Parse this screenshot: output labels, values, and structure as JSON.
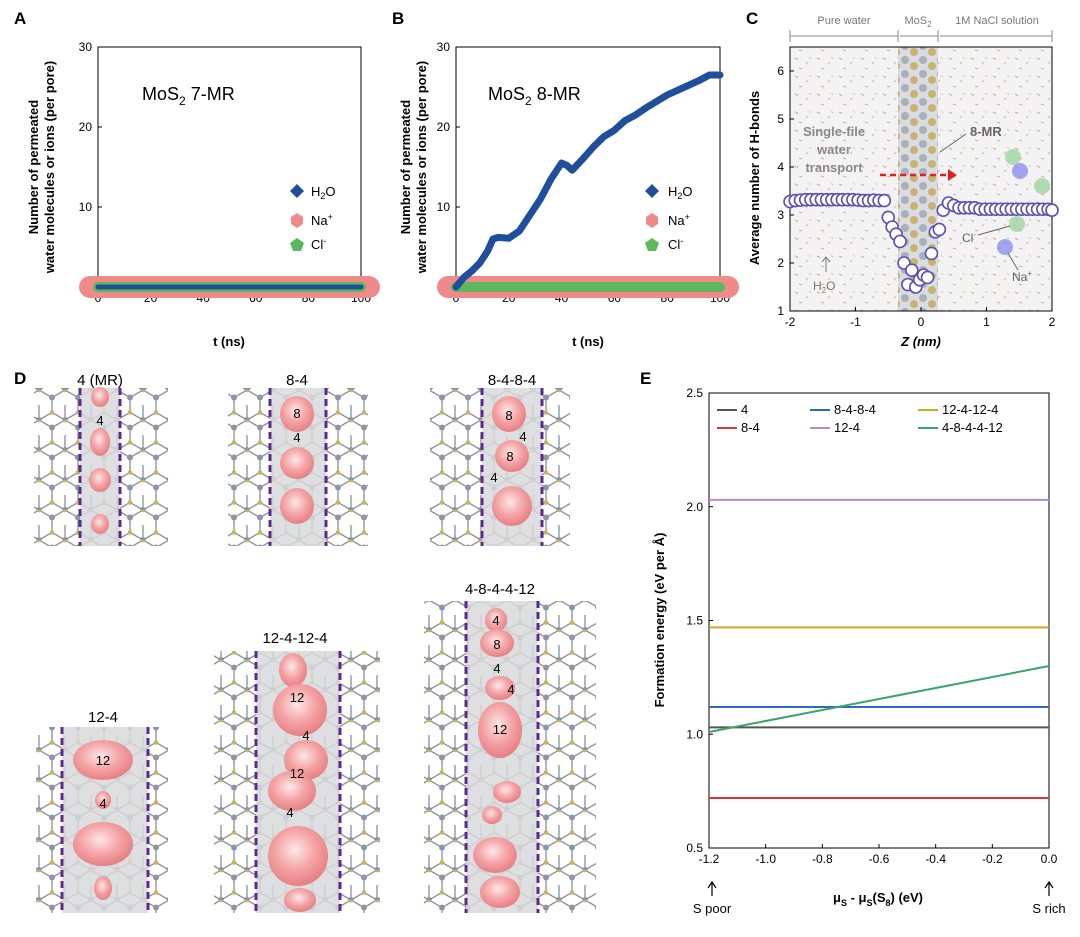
{
  "panels": {
    "A": {
      "letter": "A",
      "label": "MoS",
      "label_sub": "2",
      "label_suffix": " 7-MR",
      "xlabel": "t (ns)",
      "ylabel_1": "Number of permeated",
      "ylabel_2": "water molecules or ions (per pore)",
      "legend": [
        "H",
        "Na",
        "Cl"
      ],
      "legend_full": [
        "H2O",
        "Na+",
        "Cl-"
      ]
    },
    "B": {
      "letter": "B",
      "label": "MoS",
      "label_sub": "2",
      "label_suffix": " 8-MR",
      "xlabel": "t (ns)",
      "ylabel_1": "Number of permeated",
      "ylabel_2": "water molecules or ions (per pore)",
      "legend_full": [
        "H2O",
        "Na+",
        "Cl-"
      ]
    },
    "C": {
      "letter": "C",
      "top_labels": [
        "Pure water",
        "MoS",
        "1M NaCl solution"
      ],
      "top_sub": "2",
      "annot_single": [
        "Single-file",
        "water",
        "transport"
      ],
      "annot_8mr": "8-MR",
      "annot_h2o": "H",
      "annot_cl": "Cl",
      "annot_na": "Na",
      "xlabel": "Z (nm)",
      "ylabel": "Average number of H-bonds"
    },
    "D": {
      "letter": "D",
      "structures": [
        "4 (MR)",
        "8-4",
        "8-4-8-4",
        "12-4",
        "12-4-12-4",
        "4-8-4-4-12"
      ],
      "ring_labels": {
        "s1": [
          "4"
        ],
        "s2": [
          "8",
          "4"
        ],
        "s3": [
          "8",
          "4",
          "8",
          "4"
        ],
        "s4": [
          "12",
          "4"
        ],
        "s5": [
          "12",
          "4",
          "12",
          "4"
        ],
        "s6": [
          "4",
          "8",
          "4",
          "4",
          "12"
        ]
      }
    },
    "E": {
      "letter": "E",
      "xlabel": "μ",
      "ylabel": "Formation energy (eV per Å)",
      "s_poor": "S poor",
      "s_rich": "S rich"
    }
  },
  "chart_data": [
    {
      "panel": "A",
      "type": "line",
      "title": "MoS2 7-MR",
      "xlabel": "t (ns)",
      "ylabel": "Number of permeated water molecules or ions (per pore)",
      "xlim": [
        0,
        100
      ],
      "ylim": [
        0,
        30
      ],
      "xticks": [
        0,
        20,
        40,
        60,
        80,
        100
      ],
      "yticks": [
        0,
        10,
        20,
        30
      ],
      "series": [
        {
          "name": "H2O",
          "color": "#1f4e9c",
          "x": [
            0,
            100
          ],
          "y": [
            0,
            0
          ]
        },
        {
          "name": "Na+",
          "color": "#f08a8a",
          "x": [
            0,
            100
          ],
          "y": [
            0,
            0
          ]
        },
        {
          "name": "Cl-",
          "color": "#5cb85c",
          "x": [
            0,
            100
          ],
          "y": [
            0,
            0
          ]
        }
      ]
    },
    {
      "panel": "B",
      "type": "line",
      "title": "MoS2 8-MR",
      "xlabel": "t (ns)",
      "ylabel": "Number of permeated water molecules or ions (per pore)",
      "xlim": [
        0,
        100
      ],
      "ylim": [
        0,
        30
      ],
      "xticks": [
        0,
        20,
        40,
        60,
        80,
        100
      ],
      "yticks": [
        0,
        10,
        20,
        30
      ],
      "series": [
        {
          "name": "H2O",
          "color": "#1f4e9c",
          "x": [
            0,
            3,
            6,
            9,
            12,
            14,
            16,
            20,
            24,
            28,
            32,
            36,
            40,
            42,
            44,
            48,
            52,
            56,
            60,
            64,
            68,
            72,
            76,
            80,
            84,
            88,
            92,
            96,
            100
          ],
          "y": [
            0,
            1.2,
            2,
            3,
            4.5,
            6,
            6.2,
            6.1,
            7,
            9,
            11,
            13.5,
            15.5,
            15.2,
            14.6,
            16,
            17.5,
            18.8,
            19.6,
            20.8,
            21.5,
            22.4,
            23.2,
            24,
            24.6,
            25.2,
            25.8,
            26.5,
            26.5
          ]
        },
        {
          "name": "Na+",
          "color": "#f08a8a",
          "x": [
            0,
            100
          ],
          "y": [
            0,
            0
          ]
        },
        {
          "name": "Cl-",
          "color": "#5cb85c",
          "x": [
            0,
            100
          ],
          "y": [
            0,
            0
          ]
        }
      ]
    },
    {
      "panel": "C",
      "type": "scatter",
      "xlabel": "Z (nm)",
      "ylabel": "Average number of H-bonds",
      "xlim": [
        -2,
        2
      ],
      "ylim": [
        1,
        6.5
      ],
      "xticks": [
        -2,
        -1,
        0,
        1,
        2
      ],
      "yticks": [
        1,
        2,
        3,
        4,
        5,
        6
      ],
      "series": [
        {
          "name": "H-bonds",
          "color": "#5b4fb0",
          "x": [
            -2.0,
            -1.92,
            -1.84,
            -1.76,
            -1.68,
            -1.6,
            -1.52,
            -1.44,
            -1.36,
            -1.28,
            -1.2,
            -1.12,
            -1.04,
            -0.96,
            -0.88,
            -0.8,
            -0.72,
            -0.64,
            -0.56,
            -0.5,
            -0.44,
            -0.38,
            -0.32,
            -0.26,
            -0.2,
            -0.14,
            -0.08,
            -0.02,
            0.04,
            0.1,
            0.16,
            0.22,
            0.28,
            0.34,
            0.42,
            0.5,
            0.58,
            0.66,
            0.74,
            0.82,
            0.9,
            0.98,
            1.06,
            1.14,
            1.22,
            1.3,
            1.38,
            1.46,
            1.54,
            1.62,
            1.7,
            1.78,
            1.86,
            1.94,
            2.0
          ],
          "y": [
            3.28,
            3.3,
            3.31,
            3.32,
            3.32,
            3.32,
            3.32,
            3.32,
            3.32,
            3.32,
            3.32,
            3.32,
            3.32,
            3.31,
            3.3,
            3.3,
            3.31,
            3.3,
            3.3,
            2.95,
            2.75,
            2.6,
            2.45,
            2.0,
            1.55,
            1.85,
            1.5,
            1.65,
            1.75,
            1.7,
            2.2,
            2.65,
            2.7,
            3.1,
            3.25,
            3.2,
            3.15,
            3.15,
            3.15,
            3.15,
            3.12,
            3.12,
            3.12,
            3.12,
            3.12,
            3.12,
            3.12,
            3.12,
            3.12,
            3.12,
            3.12,
            3.12,
            3.12,
            3.12,
            3.1
          ]
        }
      ]
    },
    {
      "panel": "E",
      "type": "line",
      "xlabel": "μS - μS(S8) (eV)",
      "ylabel": "Formation energy (eV per Å)",
      "xlim": [
        -1.2,
        0.0
      ],
      "ylim": [
        0.5,
        2.5
      ],
      "xticks": [
        -1.2,
        -1.0,
        -0.8,
        -0.6,
        -0.4,
        -0.2,
        0.0
      ],
      "yticks": [
        0.5,
        1.0,
        1.5,
        2.0,
        2.5
      ],
      "series": [
        {
          "name": "4",
          "color": "#555555",
          "x": [
            -1.2,
            0.0
          ],
          "y": [
            1.03,
            1.03
          ]
        },
        {
          "name": "8-4",
          "color": "#e0363b",
          "x": [
            -1.2,
            0.0
          ],
          "y": [
            0.72,
            0.72
          ]
        },
        {
          "name": "8-4-8-4",
          "color": "#2a6bbf",
          "x": [
            -1.2,
            0.0
          ],
          "y": [
            1.12,
            1.12
          ]
        },
        {
          "name": "12-4",
          "color": "#b48bd6",
          "x": [
            -1.2,
            0.0
          ],
          "y": [
            2.03,
            2.03
          ]
        },
        {
          "name": "12-4-12-4",
          "color": "#d4a528",
          "x": [
            -1.2,
            0.0
          ],
          "y": [
            1.47,
            1.47
          ]
        },
        {
          "name": "4-8-4-4-12",
          "color": "#3aa46b",
          "x": [
            -1.2,
            0.0
          ],
          "y": [
            1.01,
            1.3
          ]
        }
      ]
    }
  ]
}
